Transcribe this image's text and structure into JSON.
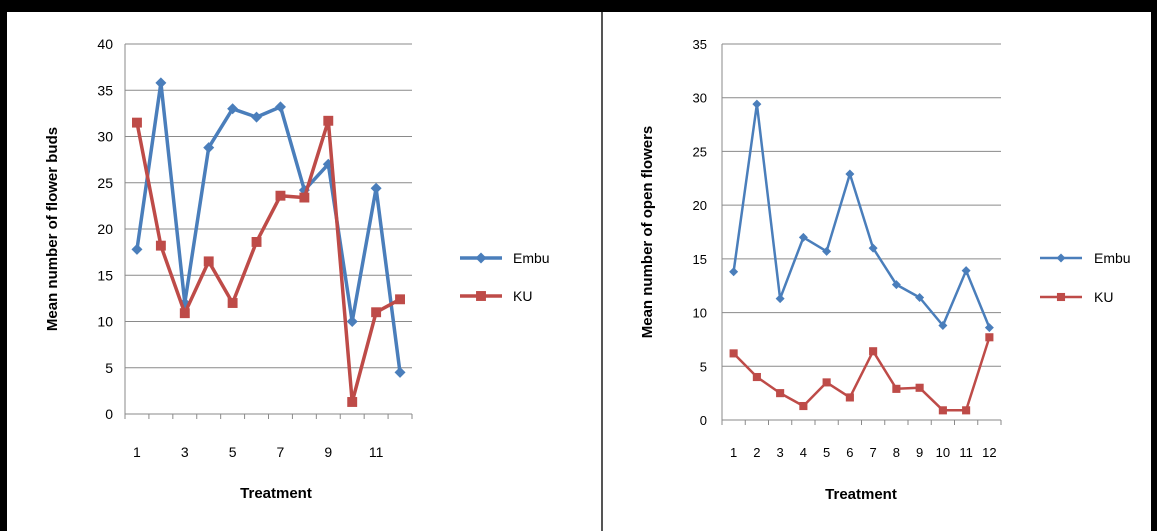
{
  "chart_data": [
    {
      "type": "line",
      "x": [
        1,
        2,
        3,
        4,
        5,
        6,
        7,
        8,
        9,
        10,
        11,
        12
      ],
      "x_tick_labels": [
        "1",
        "3",
        "5",
        "7",
        "9",
        "11"
      ],
      "xlabel": "Treatment",
      "ylabel": "Mean number of flower buds",
      "ylim": [
        0,
        40
      ],
      "y_tick_labels": [
        "0",
        "5",
        "10",
        "15",
        "20",
        "25",
        "30",
        "35",
        "40"
      ],
      "grid": "horizontal",
      "legend": "right",
      "series": [
        {
          "name": "Embu",
          "color": "#4a7ebb",
          "marker": "diamond",
          "values": [
            17.8,
            35.8,
            12.0,
            28.8,
            33.0,
            32.1,
            33.2,
            24.2,
            27.0,
            10.0,
            24.4,
            4.5
          ]
        },
        {
          "name": "KU",
          "color": "#be4b48",
          "marker": "square",
          "values": [
            31.5,
            18.2,
            10.9,
            16.5,
            12.0,
            18.6,
            23.6,
            23.4,
            31.7,
            1.3,
            11.0,
            12.4
          ]
        }
      ]
    },
    {
      "type": "line",
      "x": [
        1,
        2,
        3,
        4,
        5,
        6,
        7,
        8,
        9,
        10,
        11,
        12
      ],
      "x_tick_labels": [
        "1",
        "2",
        "3",
        "4",
        "5",
        "6",
        "7",
        "8",
        "9",
        "10",
        "11",
        "12"
      ],
      "xlabel": "Treatment",
      "ylabel": "Mean number of open flowers",
      "ylim": [
        0,
        35
      ],
      "y_tick_labels": [
        "0",
        "5",
        "10",
        "15",
        "20",
        "25",
        "30",
        "35"
      ],
      "grid": "horizontal",
      "legend": "right",
      "series": [
        {
          "name": "Embu",
          "color": "#4a7ebb",
          "marker": "diamond",
          "values": [
            13.8,
            29.4,
            11.3,
            17.0,
            15.7,
            22.9,
            16.0,
            12.6,
            11.4,
            8.8,
            13.9,
            8.6
          ]
        },
        {
          "name": "KU",
          "color": "#be4b48",
          "marker": "square",
          "values": [
            6.2,
            4.0,
            2.5,
            1.3,
            3.5,
            2.1,
            6.4,
            2.9,
            3.0,
            0.9,
            0.9,
            7.7
          ]
        }
      ]
    }
  ]
}
